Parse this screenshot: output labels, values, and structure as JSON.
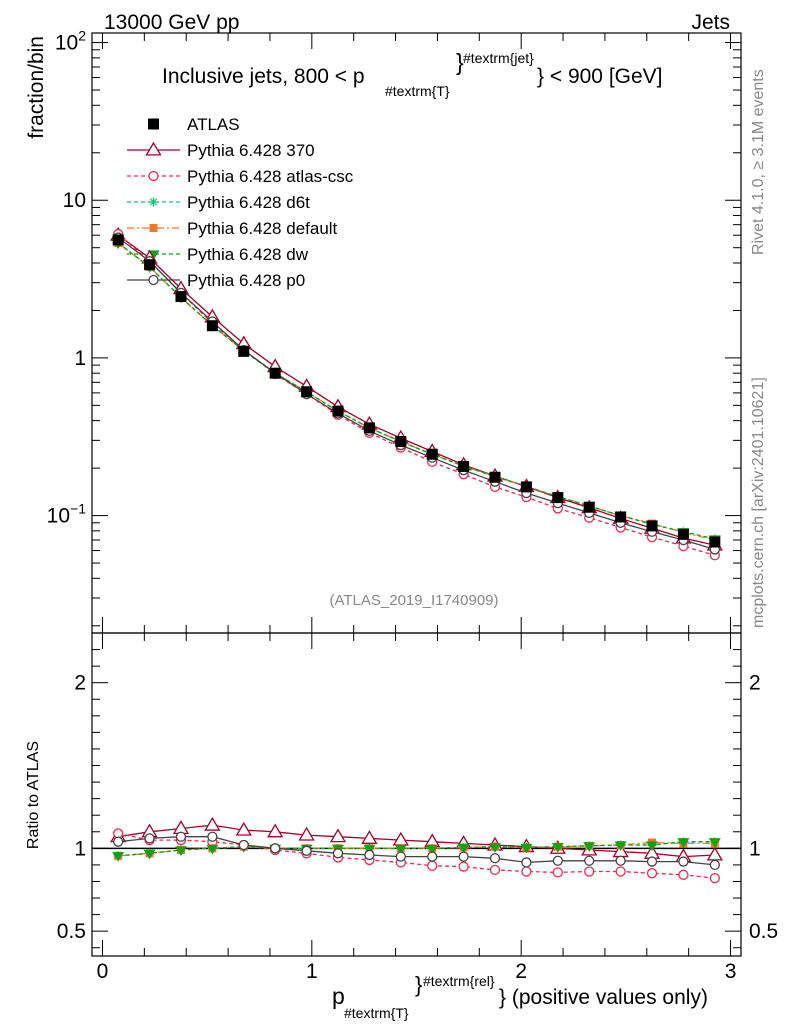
{
  "header": {
    "left": "13000 GeV pp",
    "right": "Jets"
  },
  "side_labels": {
    "rivet": "Rivet 4.1.0, ≥ 3.1M events",
    "mcplots": "mcplots.cern.ch [arXiv:2401.10621]"
  },
  "main_title": {
    "prefix": "Inclusive jets, 800 < p",
    "sub": "#textrm{T}",
    "sup": "#textrm{jet}",
    "suffix": "} < 900 [GeV]"
  },
  "analysis_id": "(ATLAS_2019_I1740909)",
  "x_axis": {
    "label_main": "p",
    "label_sub": "#textrm{T}",
    "label_sup": "#textrm{rel}",
    "label_suffix": "} (positive values only)",
    "ticks": [
      "0",
      "1",
      "2",
      "3"
    ]
  },
  "colors": {
    "ATLAS": "#000000",
    "370": "#a3002a",
    "atlas-csc": "#f02850",
    "d6t": "#14c878",
    "default": "#f07828",
    "dw": "#16a016",
    "p0": "#444444"
  },
  "chart_data": [
    {
      "type": "line",
      "scale": "log",
      "ylabel": "fraction/bin",
      "ylim": [
        0.018,
        115
      ],
      "xlim": [
        -0.05,
        3.05
      ],
      "y_tick_labels": [
        "10^-1",
        "1",
        "10",
        "10^2"
      ],
      "x": [
        0.075,
        0.225,
        0.375,
        0.525,
        0.675,
        0.825,
        0.975,
        1.125,
        1.275,
        1.425,
        1.575,
        1.725,
        1.875,
        2.025,
        2.175,
        2.325,
        2.475,
        2.625,
        2.775,
        2.925
      ],
      "series": [
        {
          "name": "ATLAS",
          "marker": "filled-square",
          "values": [
            5.6,
            3.9,
            2.45,
            1.6,
            1.1,
            0.8,
            0.61,
            0.46,
            0.36,
            0.295,
            0.245,
            0.205,
            0.175,
            0.152,
            0.13,
            0.113,
            0.098,
            0.086,
            0.076,
            0.068
          ]
        },
        {
          "name": "Pythia 6.428 370",
          "marker": "open-triangle",
          "values": [
            6.0,
            4.3,
            2.75,
            1.82,
            1.23,
            0.88,
            0.66,
            0.49,
            0.38,
            0.31,
            0.255,
            0.21,
            0.178,
            0.153,
            0.13,
            0.112,
            0.096,
            0.083,
            0.072,
            0.065
          ]
        },
        {
          "name": "Pythia 6.428 atlas-csc",
          "marker": "open-circle",
          "values": [
            6.1,
            4.1,
            2.58,
            1.66,
            1.12,
            0.79,
            0.59,
            0.435,
            0.335,
            0.27,
            0.219,
            0.183,
            0.152,
            0.131,
            0.111,
            0.097,
            0.084,
            0.073,
            0.064,
            0.056
          ]
        },
        {
          "name": "Pythia 6.428 d6t",
          "marker": "star",
          "values": [
            5.35,
            3.78,
            2.42,
            1.6,
            1.11,
            0.8,
            0.61,
            0.46,
            0.36,
            0.295,
            0.245,
            0.206,
            0.177,
            0.153,
            0.132,
            0.115,
            0.1,
            0.088,
            0.079,
            0.071
          ]
        },
        {
          "name": "Pythia 6.428 default",
          "marker": "filled-square-small",
          "values": [
            5.35,
            3.78,
            2.42,
            1.6,
            1.11,
            0.8,
            0.61,
            0.46,
            0.36,
            0.295,
            0.245,
            0.206,
            0.177,
            0.153,
            0.132,
            0.115,
            0.1,
            0.089,
            0.078,
            0.07
          ]
        },
        {
          "name": "Pythia 6.428 dw",
          "marker": "filled-triangle-down",
          "values": [
            5.35,
            3.78,
            2.42,
            1.6,
            1.11,
            0.8,
            0.61,
            0.46,
            0.36,
            0.295,
            0.245,
            0.206,
            0.177,
            0.153,
            0.132,
            0.115,
            0.1,
            0.088,
            0.079,
            0.071
          ]
        },
        {
          "name": "Pythia 6.428 p0",
          "marker": "open-circle",
          "values": [
            5.8,
            4.1,
            2.58,
            1.7,
            1.12,
            0.8,
            0.59,
            0.445,
            0.345,
            0.28,
            0.233,
            0.194,
            0.164,
            0.139,
            0.12,
            0.104,
            0.09,
            0.079,
            0.07,
            0.061
          ]
        }
      ]
    },
    {
      "type": "line",
      "scale": "linear",
      "ylabel": "Ratio to ATLAS",
      "ylim": [
        0.35,
        2.3
      ],
      "xlim": [
        -0.05,
        3.05
      ],
      "y_tick_labels": [
        "0.5",
        "1",
        "2"
      ],
      "reference": 1,
      "x": [
        0.075,
        0.225,
        0.375,
        0.525,
        0.675,
        0.825,
        0.975,
        1.125,
        1.275,
        1.425,
        1.575,
        1.725,
        1.875,
        2.025,
        2.175,
        2.325,
        2.475,
        2.625,
        2.775,
        2.925
      ],
      "series": [
        {
          "name": "Pythia 6.428 370",
          "values": [
            1.07,
            1.1,
            1.12,
            1.14,
            1.11,
            1.1,
            1.08,
            1.07,
            1.06,
            1.05,
            1.04,
            1.03,
            1.02,
            1.01,
            1.0,
            0.99,
            0.98,
            0.97,
            0.95,
            0.96
          ]
        },
        {
          "name": "Pythia 6.428 atlas-csc",
          "values": [
            1.09,
            1.05,
            1.05,
            1.04,
            1.02,
            0.99,
            0.97,
            0.945,
            0.93,
            0.915,
            0.895,
            0.89,
            0.87,
            0.86,
            0.855,
            0.86,
            0.86,
            0.85,
            0.84,
            0.82
          ]
        },
        {
          "name": "Pythia 6.428 d6t",
          "values": [
            0.955,
            0.97,
            0.99,
            1.0,
            1.01,
            1.0,
            1.0,
            1.0,
            1.0,
            1.0,
            1.0,
            1.005,
            1.01,
            1.005,
            1.01,
            1.015,
            1.02,
            1.02,
            1.04,
            1.04
          ]
        },
        {
          "name": "Pythia 6.428 default",
          "values": [
            0.955,
            0.97,
            0.99,
            1.0,
            1.01,
            1.0,
            1.0,
            1.0,
            1.0,
            1.0,
            1.0,
            1.005,
            1.01,
            1.005,
            1.01,
            1.015,
            1.02,
            1.035,
            1.03,
            1.03
          ]
        },
        {
          "name": "Pythia 6.428 dw",
          "values": [
            0.955,
            0.97,
            0.99,
            1.0,
            1.01,
            1.0,
            1.0,
            1.0,
            1.0,
            1.0,
            1.0,
            1.005,
            1.01,
            1.005,
            1.01,
            1.015,
            1.02,
            1.02,
            1.04,
            1.04
          ]
        },
        {
          "name": "Pythia 6.428 p0",
          "values": [
            1.04,
            1.06,
            1.07,
            1.07,
            1.02,
            1.0,
            0.985,
            0.97,
            0.96,
            0.95,
            0.95,
            0.95,
            0.94,
            0.915,
            0.925,
            0.925,
            0.925,
            0.92,
            0.92,
            0.9
          ]
        }
      ]
    }
  ]
}
